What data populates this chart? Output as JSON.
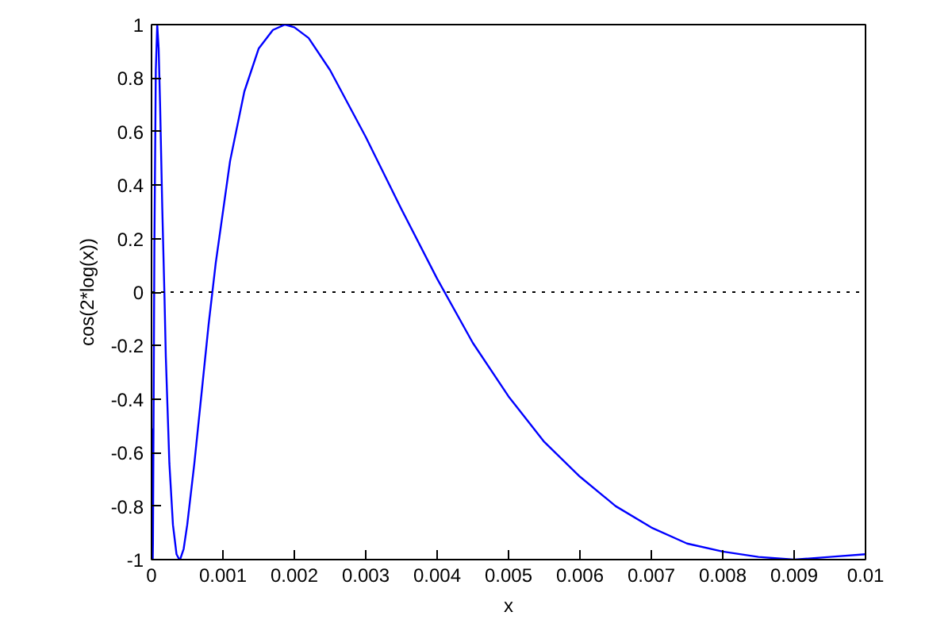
{
  "chart_data": {
    "type": "line",
    "xlabel": "x",
    "ylabel": "cos(2*log(x))",
    "xlim": [
      0,
      0.01
    ],
    "ylim": [
      -1,
      1
    ],
    "xticks": [
      0,
      0.001,
      0.002,
      0.003,
      0.004,
      0.005,
      0.006,
      0.007,
      0.008,
      0.009,
      0.01
    ],
    "yticks": [
      -1,
      -0.8,
      -0.6,
      -0.4,
      -0.2,
      0,
      0.2,
      0.4,
      0.6,
      0.8,
      1
    ],
    "grid": false,
    "marker": "none",
    "line_style": "solid",
    "ref_lines": [
      {
        "axis": "y",
        "value": 0,
        "color": "#000000",
        "line_style": "dotted"
      }
    ],
    "series": [
      {
        "color": "#0000ff",
        "x": [
          1e-05,
          1.7e-05,
          2e-05,
          3e-05,
          4e-05,
          6e-05,
          8e-05,
          0.0001,
          0.00012,
          0.00015,
          0.00018,
          0.0002,
          0.00025,
          0.0003,
          0.00035,
          0.00039,
          0.0004,
          0.00045,
          0.0005,
          0.0006,
          0.0007,
          0.0008,
          0.0009,
          0.0011,
          0.0013,
          0.0015,
          0.0017,
          0.00187,
          0.002,
          0.0022,
          0.0025,
          0.003,
          0.0035,
          0.004,
          0.0045,
          0.005,
          0.0055,
          0.006,
          0.0065,
          0.007,
          0.0075,
          0.008,
          0.0085,
          0.009,
          0.0095,
          0.01
        ],
        "values": [
          -0.51,
          -1,
          -0.94,
          -0.4,
          0.17,
          0.83,
          1,
          0.91,
          0.7,
          0.32,
          0,
          -0.24,
          -0.64,
          -0.87,
          -0.98,
          -1,
          -1,
          -0.96,
          -0.87,
          -0.64,
          -0.38,
          -0.12,
          0.11,
          0.49,
          0.75,
          0.91,
          0.98,
          1,
          0.99,
          0.95,
          0.83,
          0.58,
          0.31,
          0.05,
          -0.19,
          -0.39,
          -0.56,
          -0.69,
          -0.8,
          -0.88,
          -0.94,
          -0.97,
          -0.99,
          -1,
          -0.99,
          -0.98
        ]
      }
    ]
  }
}
